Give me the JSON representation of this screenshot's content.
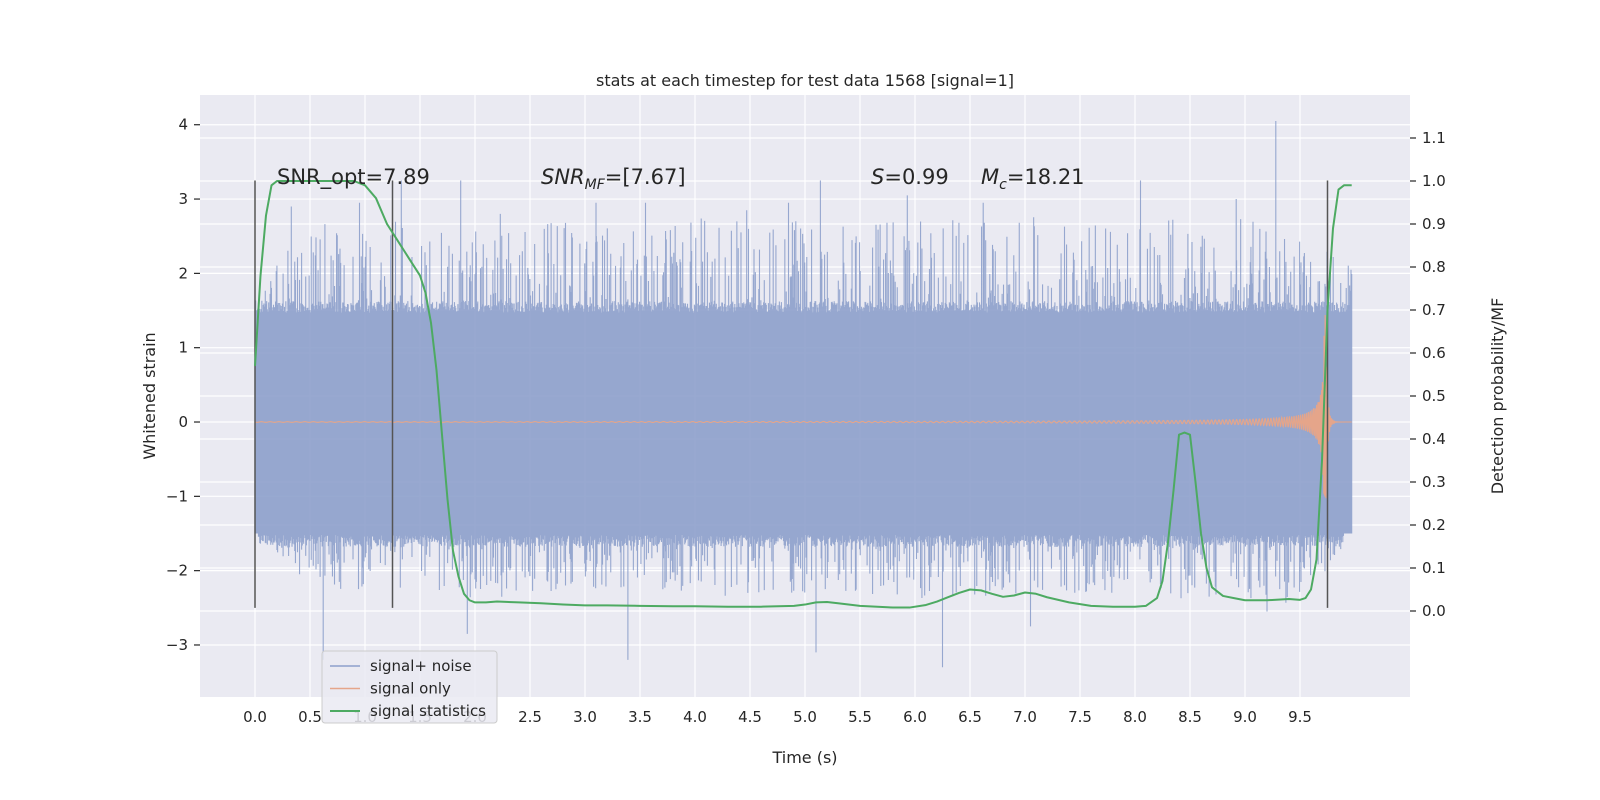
{
  "chart_data": {
    "type": "line",
    "title": "stats at each timestep for test data 1568 [signal=1]",
    "xlabel": "Time (s)",
    "ylabel": "Whitened strain",
    "y2label": "Detection probability/MF",
    "xlim": [
      -0.5,
      10.5
    ],
    "ylim": [
      -3.7,
      4.4
    ],
    "y2lim": [
      -0.2,
      1.2
    ],
    "x_ticks": [
      0.0,
      0.5,
      1.0,
      1.5,
      2.0,
      2.5,
      3.0,
      3.5,
      4.0,
      4.5,
      5.0,
      5.5,
      6.0,
      6.5,
      7.0,
      7.5,
      8.0,
      8.5,
      9.0,
      9.5
    ],
    "x_tick_labels": [
      "0.0",
      "0.5",
      "1.0",
      "1.5",
      "2.0",
      "2.5",
      "3.0",
      "3.5",
      "4.0",
      "4.5",
      "5.0",
      "5.5",
      "6.0",
      "6.5",
      "7.0",
      "7.5",
      "8.0",
      "8.5",
      "9.0",
      "9.5"
    ],
    "y_ticks": [
      -3,
      -2,
      -1,
      0,
      1,
      2,
      3,
      4
    ],
    "y_tick_labels": [
      "−3",
      "−2",
      "−1",
      "0",
      "1",
      "2",
      "3",
      "4"
    ],
    "y2_ticks": [
      0.0,
      0.1,
      0.2,
      0.3,
      0.4,
      0.5,
      0.6,
      0.7,
      0.8,
      0.9,
      1.0,
      1.1
    ],
    "y2_tick_labels": [
      "0.0",
      "0.1",
      "0.2",
      "0.3",
      "0.4",
      "0.5",
      "0.6",
      "0.7",
      "0.8",
      "0.9",
      "1.0",
      "1.1"
    ],
    "grid": true,
    "legend_position": "bottom-left",
    "annotations": [
      {
        "text": "SNR_opt=7.89",
        "x": 0.2,
        "y": 3.3
      },
      {
        "text": "SNR",
        "sub": "MF",
        "suffix": "=[7.67]",
        "italic": true,
        "x": 2.6,
        "y": 3.3
      },
      {
        "text": "S",
        "suffix": "=0.99",
        "italic": true,
        "x": 5.6,
        "y": 3.3
      },
      {
        "text": "M",
        "sub": "c",
        "suffix": "=18.21",
        "italic": true,
        "x": 6.6,
        "y": 3.3
      }
    ],
    "vertical_markers": {
      "x": [
        0.0,
        1.25,
        9.75
      ],
      "y_range": [
        -2.5,
        3.25
      ],
      "color": "#555555"
    },
    "series": [
      {
        "name": "signal+ noise",
        "axis": "left",
        "color": "#8da0cb",
        "style": "noise-band",
        "x_range": [
          0.0,
          9.97
        ],
        "envelope_upper": [
          [
            0.0,
            1.75
          ],
          [
            0.5,
            2.7
          ],
          [
            1.0,
            2.65
          ],
          [
            1.5,
            2.75
          ],
          [
            2.0,
            2.65
          ],
          [
            2.5,
            2.75
          ],
          [
            3.0,
            2.7
          ],
          [
            3.5,
            2.6
          ],
          [
            4.0,
            2.75
          ],
          [
            4.5,
            2.7
          ],
          [
            5.0,
            2.75
          ],
          [
            5.5,
            2.6
          ],
          [
            6.0,
            2.8
          ],
          [
            6.5,
            2.75
          ],
          [
            7.0,
            2.8
          ],
          [
            7.5,
            2.7
          ],
          [
            8.0,
            2.8
          ],
          [
            8.5,
            2.75
          ],
          [
            9.0,
            2.8
          ],
          [
            9.5,
            2.6
          ],
          [
            9.97,
            2.2
          ]
        ],
        "envelope_lower": [
          [
            0.0,
            -1.5
          ],
          [
            0.5,
            -2.2
          ],
          [
            1.0,
            -2.3
          ],
          [
            1.5,
            -2.2
          ],
          [
            2.0,
            -2.4
          ],
          [
            2.5,
            -2.3
          ],
          [
            3.0,
            -2.3
          ],
          [
            3.5,
            -2.2
          ],
          [
            4.0,
            -2.4
          ],
          [
            4.5,
            -2.3
          ],
          [
            5.0,
            -2.3
          ],
          [
            5.5,
            -2.3
          ],
          [
            6.0,
            -2.4
          ],
          [
            6.5,
            -2.4
          ],
          [
            7.0,
            -2.3
          ],
          [
            7.5,
            -2.3
          ],
          [
            8.0,
            -2.3
          ],
          [
            8.5,
            -2.4
          ],
          [
            9.0,
            -2.4
          ],
          [
            9.5,
            -2.5
          ],
          [
            9.97,
            -1.5
          ]
        ],
        "spikes": [
          [
            0.33,
            2.9
          ],
          [
            0.62,
            -3.2
          ],
          [
            0.95,
            2.95
          ],
          [
            1.33,
            3.25
          ],
          [
            1.87,
            3.25
          ],
          [
            1.93,
            -2.85
          ],
          [
            2.23,
            2.8
          ],
          [
            3.1,
            2.95
          ],
          [
            3.39,
            -3.2
          ],
          [
            3.55,
            2.95
          ],
          [
            4.47,
            2.85
          ],
          [
            4.85,
            2.95
          ],
          [
            5.14,
            3.25
          ],
          [
            5.1,
            -3.1
          ],
          [
            5.93,
            3.05
          ],
          [
            6.25,
            -3.3
          ],
          [
            6.62,
            2.95
          ],
          [
            7.05,
            -2.75
          ],
          [
            8.05,
            3.25
          ],
          [
            8.92,
            3.0
          ],
          [
            9.28,
            4.05
          ],
          [
            9.2,
            -2.55
          ]
        ]
      },
      {
        "name": "signal only",
        "axis": "left",
        "color": "#e5a58a",
        "style": "chirp",
        "x_range": [
          0.0,
          9.97
        ],
        "merger_time": 9.73,
        "peak_amplitude": 1.45
      },
      {
        "name": "signal statistics",
        "axis": "right",
        "color": "#4daa62",
        "style": "line",
        "x": [
          0.0,
          0.05,
          0.1,
          0.15,
          0.2,
          0.3,
          0.5,
          0.7,
          0.9,
          1.0,
          1.1,
          1.2,
          1.3,
          1.4,
          1.5,
          1.55,
          1.6,
          1.65,
          1.7,
          1.75,
          1.8,
          1.85,
          1.9,
          1.95,
          2.0,
          2.1,
          2.2,
          2.4,
          2.6,
          2.8,
          3.0,
          3.2,
          3.5,
          3.8,
          4.0,
          4.3,
          4.6,
          4.9,
          5.0,
          5.1,
          5.2,
          5.3,
          5.5,
          5.8,
          5.95,
          6.1,
          6.2,
          6.3,
          6.4,
          6.5,
          6.6,
          6.7,
          6.8,
          6.9,
          7.0,
          7.1,
          7.2,
          7.4,
          7.6,
          7.8,
          8.0,
          8.1,
          8.2,
          8.25,
          8.3,
          8.35,
          8.4,
          8.45,
          8.5,
          8.55,
          8.6,
          8.65,
          8.7,
          8.8,
          8.9,
          9.0,
          9.2,
          9.4,
          9.5,
          9.55,
          9.6,
          9.65,
          9.7,
          9.75,
          9.8,
          9.85,
          9.9,
          9.97
        ],
        "y": [
          0.57,
          0.78,
          0.92,
          0.99,
          1.0,
          1.0,
          1.0,
          1.0,
          1.0,
          0.99,
          0.96,
          0.9,
          0.86,
          0.82,
          0.78,
          0.74,
          0.67,
          0.56,
          0.41,
          0.26,
          0.14,
          0.08,
          0.04,
          0.025,
          0.02,
          0.02,
          0.022,
          0.02,
          0.018,
          0.015,
          0.013,
          0.013,
          0.012,
          0.011,
          0.011,
          0.01,
          0.01,
          0.012,
          0.015,
          0.02,
          0.021,
          0.018,
          0.012,
          0.008,
          0.008,
          0.014,
          0.022,
          0.032,
          0.042,
          0.05,
          0.048,
          0.04,
          0.033,
          0.036,
          0.043,
          0.04,
          0.032,
          0.02,
          0.012,
          0.01,
          0.01,
          0.012,
          0.03,
          0.07,
          0.16,
          0.28,
          0.41,
          0.415,
          0.41,
          0.3,
          0.18,
          0.1,
          0.055,
          0.035,
          0.03,
          0.025,
          0.025,
          0.028,
          0.026,
          0.03,
          0.05,
          0.12,
          0.35,
          0.7,
          0.89,
          0.98,
          0.99,
          0.99
        ]
      }
    ]
  }
}
